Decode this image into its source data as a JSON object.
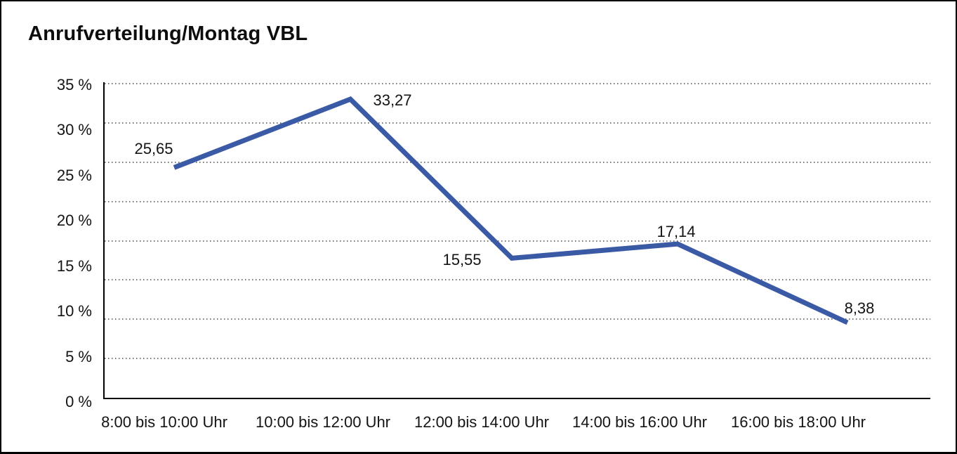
{
  "title": "Anrufverteilung/Montag VBL",
  "chart_data": {
    "type": "line",
    "title": "Anrufverteilung/Montag VBL",
    "categories": [
      "8:00 bis 10:00 Uhr",
      "10:00 bis 12:00 Uhr",
      "12:00 bis 14:00 Uhr",
      "14:00 bis 16:00 Uhr",
      "16:00 bis 18:00 Uhr"
    ],
    "values": [
      25.65,
      33.27,
      15.55,
      17.14,
      8.38
    ],
    "data_labels": [
      "25,65",
      "33,27",
      "15,55",
      "17,14",
      "8,38"
    ],
    "y_tick_labels": [
      "35 %",
      "30 %",
      "25 %",
      "20 %",
      "15 %",
      "10 %",
      "5 %",
      "0 %"
    ],
    "xlabel": "",
    "ylabel": "",
    "ylim": [
      0,
      35
    ],
    "y_tick_step": 5,
    "grid": "horizontal-dotted",
    "gridline_count": 9,
    "legend": "none",
    "colors": {
      "line": "#3B5AA6",
      "grid": "#767676",
      "axis": "#000000",
      "text": "#141414",
      "background": "#FFFFFF",
      "border": "#000000"
    }
  }
}
